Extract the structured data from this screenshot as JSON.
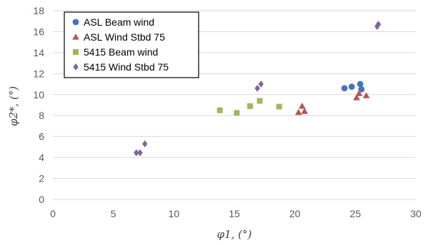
{
  "chart_data": {
    "type": "scatter",
    "xlabel": "φ1, (°)",
    "ylabel": "φ2*, (°)",
    "xlim": [
      0,
      30
    ],
    "ylim": [
      0,
      18
    ],
    "xticks": [
      0,
      5,
      10,
      15,
      20,
      25,
      30
    ],
    "yticks": [
      0,
      2,
      4,
      6,
      8,
      10,
      12,
      14,
      16,
      18
    ],
    "grid": "horizontal",
    "legend_position": "top-left",
    "series": [
      {
        "name": "ASL  Beam wind",
        "marker": "circle",
        "color": "#4472C4",
        "points": [
          [
            24.1,
            10.6
          ],
          [
            24.7,
            10.75
          ],
          [
            25.4,
            11.0
          ],
          [
            25.5,
            10.5
          ]
        ]
      },
      {
        "name": "ASL Wind  Stbd 75",
        "marker": "triangle",
        "color": "#C0504D",
        "points": [
          [
            20.3,
            8.3
          ],
          [
            20.6,
            8.9
          ],
          [
            20.8,
            8.4
          ],
          [
            25.1,
            9.7
          ],
          [
            25.3,
            10.1
          ],
          [
            25.9,
            9.9
          ]
        ]
      },
      {
        "name": "5415 Beam wind",
        "marker": "square",
        "color": "#9BBB59",
        "points": [
          [
            13.8,
            8.5
          ],
          [
            15.2,
            8.25
          ],
          [
            16.3,
            8.9
          ],
          [
            17.1,
            9.4
          ],
          [
            18.7,
            8.85
          ]
        ]
      },
      {
        "name": "5415 Wind  Stbd 75",
        "marker": "diamond",
        "color": "#8064A2",
        "points": [
          [
            6.9,
            4.45
          ],
          [
            7.2,
            4.45
          ],
          [
            7.6,
            5.3
          ],
          [
            16.9,
            10.6
          ],
          [
            17.2,
            11.0
          ],
          [
            26.8,
            16.5
          ],
          [
            26.9,
            16.7
          ]
        ]
      }
    ]
  }
}
